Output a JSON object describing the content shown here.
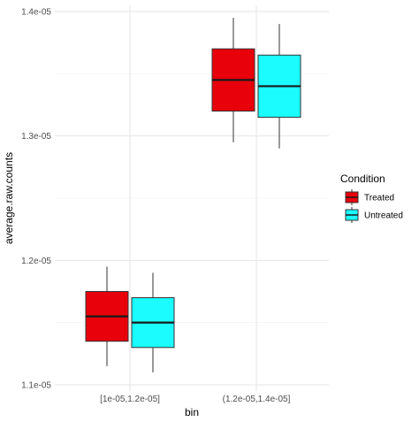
{
  "chart_data": {
    "type": "box",
    "title": "",
    "xlabel": "bin",
    "ylabel": "average.raw.counts",
    "categories": [
      "[1e-05,1.2e-05]",
      "(1.2e-05,1.4e-05]"
    ],
    "ylim": [
      1.095e-05,
      1.405e-05
    ],
    "yticks": [
      1.1e-05,
      1.2e-05,
      1.3e-05,
      1.4e-05
    ],
    "ytick_labels": [
      "1.1e-05",
      "1.2e-05",
      "1.3e-05",
      "1.4e-05"
    ],
    "grid": true,
    "legend": {
      "title": "Condition",
      "position": "right"
    },
    "series": [
      {
        "name": "Treated",
        "color": "#e8000b",
        "boxes": [
          {
            "category": "[1e-05,1.2e-05]",
            "min": 1.115e-05,
            "q1": 1.135e-05,
            "median": 1.155e-05,
            "q3": 1.175e-05,
            "max": 1.195e-05
          },
          {
            "category": "(1.2e-05,1.4e-05]",
            "min": 1.295e-05,
            "q1": 1.32e-05,
            "median": 1.345e-05,
            "q3": 1.37e-05,
            "max": 1.395e-05
          }
        ]
      },
      {
        "name": "Untreated",
        "color": "#1afcff",
        "boxes": [
          {
            "category": "[1e-05,1.2e-05]",
            "min": 1.11e-05,
            "q1": 1.13e-05,
            "median": 1.15e-05,
            "q3": 1.17e-05,
            "max": 1.19e-05
          },
          {
            "category": "(1.2e-05,1.4e-05]",
            "min": 1.29e-05,
            "q1": 1.315e-05,
            "median": 1.34e-05,
            "q3": 1.365e-05,
            "max": 1.39e-05
          }
        ]
      }
    ]
  }
}
